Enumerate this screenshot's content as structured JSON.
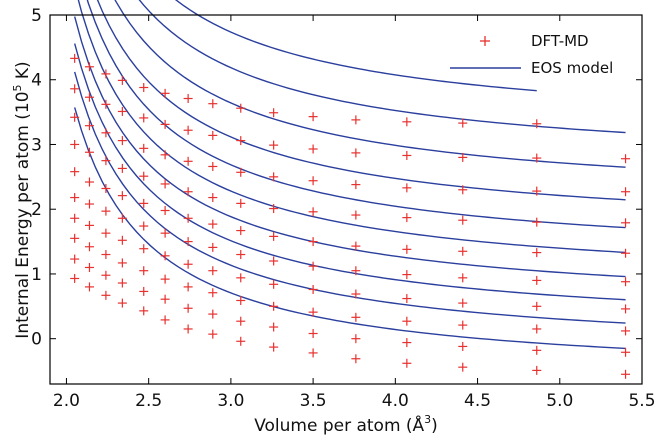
{
  "chart_data": {
    "type": "scatter",
    "xlabel": "Volume per atom (Å",
    "xlabel_sup": "3",
    "xlabel_tail": ")",
    "ylabel": "Internal Energy per atom (10",
    "ylabel_sup": "5",
    "ylabel_tail": " K)",
    "xlim": [
      1.9,
      5.5
    ],
    "ylim": [
      -0.7,
      5.0
    ],
    "xticks": [
      2.0,
      2.5,
      3.0,
      3.5,
      4.0,
      4.5,
      5.0,
      5.5
    ],
    "xtick_labels": [
      "2.0",
      "2.5",
      "3.0",
      "3.5",
      "4.0",
      "4.5",
      "5.0",
      "5.5"
    ],
    "yticks": [
      0,
      1,
      2,
      3,
      4,
      5
    ],
    "ytick_labels": [
      "0",
      "1",
      "2",
      "3",
      "4",
      "5"
    ],
    "grid": false,
    "legend_position": "top-right",
    "legend": [
      {
        "label": "DFT-MD",
        "marker": "plus",
        "color": "#e8312f"
      },
      {
        "label": "EOS model",
        "marker": "line",
        "color": "#2b3f9e"
      }
    ],
    "colors": {
      "dft": "#e8312f",
      "eos": "#2b3f9e"
    },
    "dft_md": {
      "x": [
        2.05,
        2.14,
        2.24,
        2.34,
        2.47,
        2.6,
        2.74,
        2.89,
        3.06,
        3.26,
        3.5,
        3.76,
        4.07,
        4.41,
        4.86,
        5.4
      ],
      "series": [
        [
          0.93,
          0.8,
          0.67,
          0.55,
          0.43,
          0.29,
          0.15,
          0.07,
          -0.04,
          -0.13,
          -0.22,
          -0.31,
          -0.38,
          -0.44,
          -0.49,
          -0.55
        ],
        [
          1.23,
          1.1,
          0.98,
          0.86,
          0.73,
          0.61,
          0.47,
          0.38,
          0.27,
          0.18,
          0.08,
          0.0,
          -0.06,
          -0.12,
          -0.18,
          -0.21
        ],
        [
          1.55,
          1.42,
          1.3,
          1.17,
          1.05,
          0.92,
          0.8,
          0.71,
          0.59,
          0.5,
          0.41,
          0.33,
          0.27,
          0.21,
          0.15,
          0.12
        ],
        [
          1.86,
          1.75,
          1.63,
          1.52,
          1.39,
          1.28,
          1.15,
          1.05,
          0.94,
          0.84,
          0.76,
          0.69,
          0.62,
          0.55,
          0.5,
          0.46
        ],
        [
          2.18,
          2.08,
          1.97,
          1.86,
          1.74,
          1.63,
          1.5,
          1.41,
          1.3,
          1.2,
          1.12,
          1.05,
          0.99,
          0.94,
          0.9,
          0.88
        ],
        [
          2.58,
          2.42,
          2.32,
          2.21,
          2.09,
          1.98,
          1.86,
          1.77,
          1.67,
          1.58,
          1.5,
          1.43,
          1.38,
          1.35,
          1.33,
          1.32
        ],
        [
          3.0,
          2.88,
          2.75,
          2.63,
          2.51,
          2.39,
          2.27,
          2.18,
          2.09,
          2.01,
          1.96,
          1.91,
          1.87,
          1.83,
          1.8,
          1.79
        ],
        [
          3.42,
          3.29,
          3.18,
          3.06,
          2.94,
          2.84,
          2.74,
          2.66,
          2.57,
          2.5,
          2.44,
          2.38,
          2.33,
          2.3,
          2.28,
          2.27
        ],
        [
          3.86,
          3.73,
          3.62,
          3.51,
          3.41,
          3.31,
          3.22,
          3.14,
          3.06,
          2.99,
          2.93,
          2.87,
          2.83,
          2.8,
          2.79,
          2.78
        ],
        [
          4.33,
          4.2,
          4.09,
          3.99,
          3.88,
          3.79,
          3.71,
          3.63,
          3.56,
          3.49,
          3.43,
          3.38,
          3.35,
          3.33,
          3.32,
          null
        ]
      ]
    },
    "eos_model": {
      "x_start": 2.05,
      "x_end": [
        5.4,
        5.4,
        5.4,
        5.4,
        5.4,
        5.4,
        5.4,
        5.4,
        5.4,
        4.86
      ],
      "v_min": 1.6,
      "curves": [
        {
          "e_inf": -0.65,
          "amplitude": 1.9
        },
        {
          "e_inf": -0.28,
          "amplitude": 1.98
        },
        {
          "e_inf": 0.07,
          "amplitude": 2.02
        },
        {
          "e_inf": 0.42,
          "amplitude": 2.05
        },
        {
          "e_inf": 0.78,
          "amplitude": 2.1
        },
        {
          "e_inf": 1.15,
          "amplitude": 2.15
        },
        {
          "e_inf": 1.58,
          "amplitude": 2.15
        },
        {
          "e_inf": 2.07,
          "amplitude": 2.2
        },
        {
          "e_inf": 2.6,
          "amplitude": 2.22
        },
        {
          "e_inf": 3.15,
          "amplitude": 2.22
        }
      ]
    }
  }
}
